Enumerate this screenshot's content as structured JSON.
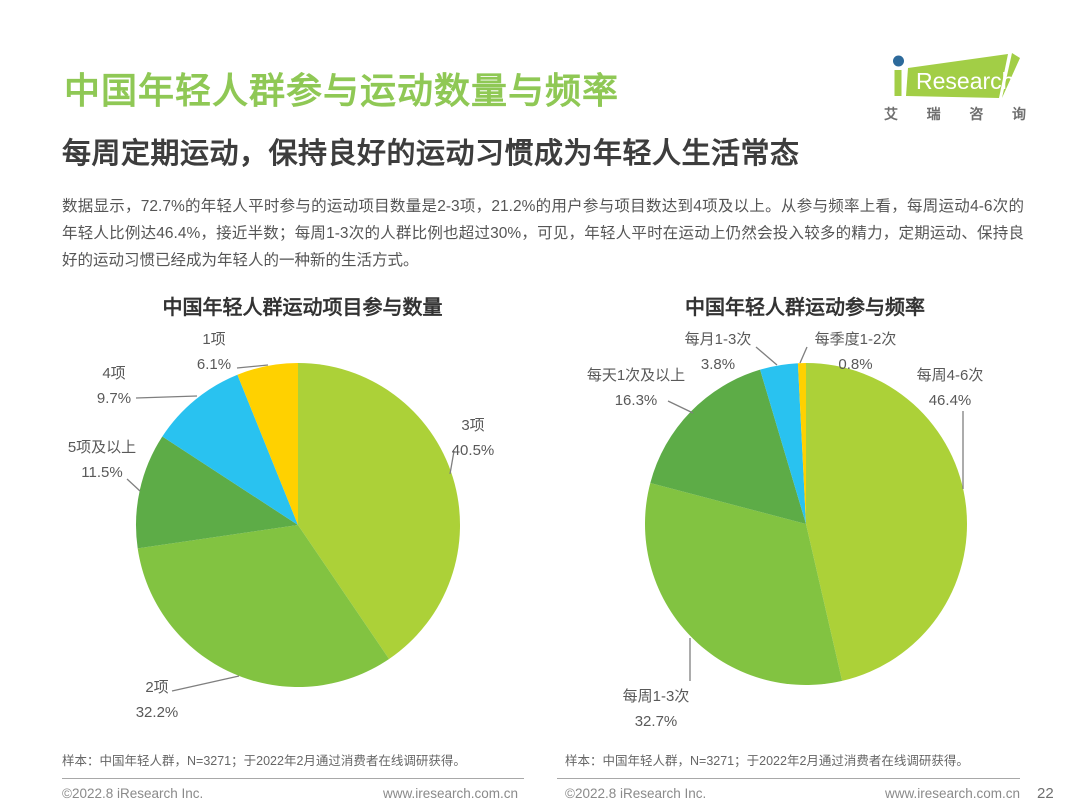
{
  "header": {
    "title": "中国年轻人群参与运动数量与频率",
    "subtitle": "每周定期运动，保持良好的运动习惯成为年轻人生活常态"
  },
  "logo": {
    "name": "iResearch",
    "text_i": "i",
    "text_research": "Research",
    "tagline": [
      "艾",
      "瑞",
      "咨",
      "询"
    ],
    "green": "#A2CE46",
    "dot_blue": "#2D6A9B"
  },
  "intro": {
    "text": "数据显示，72.7%的年轻人平时参与的运动项目数量是2-3项，21.2%的用户参与项目数达到4项及以上。从参与频率上看，每周运动4-6次的年轻人比例达46.4%，接近半数；每周1-3次的人群比例也超过30%，可见，年轻人平时在运动上仍然会投入较多的精力，定期运动、保持良好的运动习惯已经成为年轻人的一种新的生活方式。"
  },
  "chart_data": [
    {
      "type": "pie",
      "title": "中国年轻人群运动项目参与数量",
      "start": "top",
      "direction": "clockwise",
      "slices": [
        {
          "label": "3项",
          "value": 40.5,
          "pct": "40.5%",
          "color": "#ACD138"
        },
        {
          "label": "2项",
          "value": 32.2,
          "pct": "32.2%",
          "color": "#82C341"
        },
        {
          "label": "5项及以上",
          "value": 11.5,
          "pct": "11.5%",
          "color": "#5DAC47"
        },
        {
          "label": "4项",
          "value": 9.7,
          "pct": "9.7%",
          "color": "#29C2F0"
        },
        {
          "label": "1项",
          "value": 6.1,
          "pct": "6.1%",
          "color": "#FFD100"
        }
      ]
    },
    {
      "type": "pie",
      "title": "中国年轻人群运动参与频率",
      "start": "top",
      "direction": "clockwise",
      "slices": [
        {
          "label": "每周4-6次",
          "value": 46.4,
          "pct": "46.4%",
          "color": "#ACD138"
        },
        {
          "label": "每周1-3次",
          "value": 32.7,
          "pct": "32.7%",
          "color": "#82C341"
        },
        {
          "label": "每天1次及以上",
          "value": 16.3,
          "pct": "16.3%",
          "color": "#5DAC47"
        },
        {
          "label": "每月1-3次",
          "value": 3.8,
          "pct": "3.8%",
          "color": "#29C2F0"
        },
        {
          "label": "每季度1-2次",
          "value": 0.8,
          "pct": "0.8%",
          "color": "#FFD100"
        }
      ]
    }
  ],
  "sample_note": "样本：中国年轻人群，N=3271；于2022年2月通过消费者在线调研获得。",
  "footer": {
    "copyright": "©2022.8 iResearch Inc.",
    "website": "www.iresearch.com.cn",
    "page_number": "22"
  }
}
